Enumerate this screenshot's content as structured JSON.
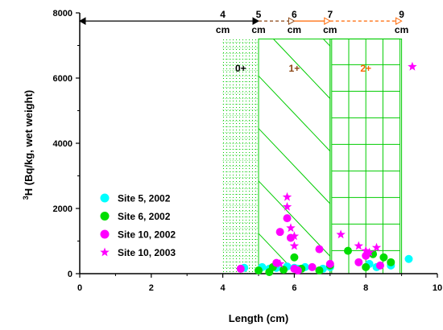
{
  "chart_data": {
    "type": "scatter",
    "title": "",
    "xlabel": "Length (cm)",
    "ylabel_sup": "3",
    "ylabel": "H (Bq/kg, wet weight)",
    "xlim": [
      0,
      10
    ],
    "ylim": [
      0,
      8000
    ],
    "x_ticks": [
      "0",
      "2",
      "4",
      "6",
      "8",
      "10"
    ],
    "y_ticks": [
      "0",
      "2000",
      "4000",
      "6000",
      "8000"
    ],
    "grid": false,
    "legend_position": "bottom-left",
    "series": [
      {
        "name": "Site 5, 2002",
        "color": "#00ffff",
        "marker": "circle",
        "points": [
          [
            4.6,
            180
          ],
          [
            5.1,
            200
          ],
          [
            5.3,
            150
          ],
          [
            5.5,
            180
          ],
          [
            5.8,
            220
          ],
          [
            6.0,
            180
          ],
          [
            6.1,
            150
          ],
          [
            6.3,
            200
          ],
          [
            6.8,
            150
          ],
          [
            7.0,
            200
          ],
          [
            8.1,
            300
          ],
          [
            8.3,
            200
          ],
          [
            8.7,
            250
          ],
          [
            9.2,
            450
          ]
        ]
      },
      {
        "name": "Site 6, 2002",
        "color": "#00dd00",
        "marker": "circle",
        "points": [
          [
            5.0,
            100
          ],
          [
            5.3,
            50
          ],
          [
            5.4,
            200
          ],
          [
            5.7,
            120
          ],
          [
            6.0,
            500
          ],
          [
            6.2,
            150
          ],
          [
            6.7,
            100
          ],
          [
            7.0,
            250
          ],
          [
            7.5,
            700
          ],
          [
            8.0,
            200
          ],
          [
            8.2,
            600
          ],
          [
            8.5,
            500
          ],
          [
            8.7,
            350
          ]
        ]
      },
      {
        "name": "Site 10, 2002",
        "color": "#ff00ff",
        "marker": "circle",
        "points": [
          [
            4.5,
            150
          ],
          [
            5.5,
            330
          ],
          [
            5.6,
            1280
          ],
          [
            5.8,
            1700
          ],
          [
            5.9,
            1100
          ],
          [
            6.0,
            150
          ],
          [
            6.1,
            100
          ],
          [
            6.5,
            200
          ],
          [
            6.7,
            750
          ],
          [
            7.0,
            300
          ],
          [
            7.8,
            350
          ],
          [
            8.0,
            550
          ],
          [
            8.4,
            250
          ]
        ]
      },
      {
        "name": "Site 10, 2003",
        "color": "#ff00ff",
        "marker": "star",
        "points": [
          [
            5.6,
            300
          ],
          [
            5.8,
            2350
          ],
          [
            5.8,
            2050
          ],
          [
            5.9,
            1400
          ],
          [
            6.0,
            1150
          ],
          [
            6.0,
            850
          ],
          [
            7.3,
            1200
          ],
          [
            7.8,
            850
          ],
          [
            8.0,
            700
          ],
          [
            8.1,
            650
          ],
          [
            8.3,
            800
          ],
          [
            9.3,
            6350
          ]
        ]
      }
    ],
    "age_boxes": [
      {
        "label": "0+",
        "x0": 4,
        "x1": 5,
        "color": "#000000",
        "fill": "dotted"
      },
      {
        "label": "1+",
        "x0": 5,
        "x1": 7,
        "color": "#8b4513",
        "fill": "hatched"
      },
      {
        "label": "2+",
        "x0": 7,
        "x1": 9,
        "color": "#ff6600",
        "fill": "grid"
      }
    ],
    "box_top": 7200,
    "size_annotations": [
      {
        "x": 4,
        "value": "4",
        "unit": "cm"
      },
      {
        "x": 5,
        "value": "5",
        "unit": "cm"
      },
      {
        "x": 6,
        "value": "6",
        "unit": "cm"
      },
      {
        "x": 7,
        "value": "7",
        "unit": "cm"
      },
      {
        "x": 9,
        "value": "9",
        "unit": "cm"
      }
    ],
    "range_arrows": [
      {
        "from": 0,
        "to": 5,
        "style": "solid",
        "color": "#000000"
      },
      {
        "from": 5,
        "to": 6,
        "style": "dashed",
        "color": "#8b4513"
      },
      {
        "from": 6,
        "to": 7,
        "style": "solid",
        "color": "#ff6600"
      },
      {
        "from": 7,
        "to": 9,
        "style": "dashed",
        "color": "#ff6600"
      }
    ],
    "arrow_y": 7750
  }
}
